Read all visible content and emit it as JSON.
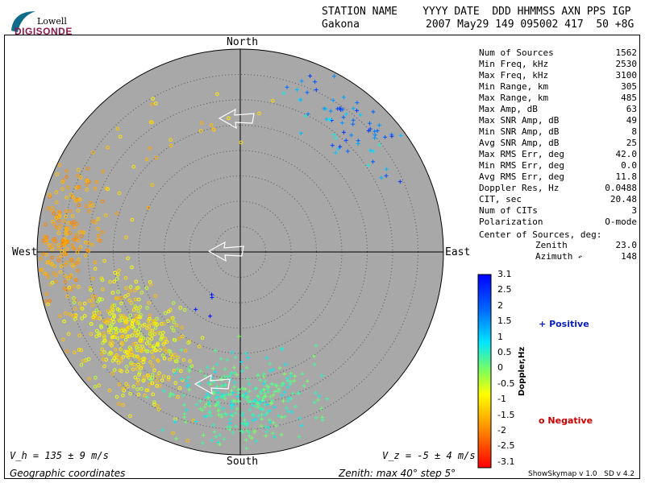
{
  "header": {
    "line1": "STATION NAME    YYYY DATE  DDD HHMMSS AXN PPS IGP",
    "station": "Gakona",
    "values": "2007 May29 149 095002 417  50 +8G"
  },
  "logo": {
    "top": "Lowell",
    "bottom": "DIGISONDE"
  },
  "compass": {
    "north": "North",
    "south": "South",
    "east": "East",
    "west": "West"
  },
  "stats": [
    {
      "label": "Num of Sources",
      "value": "1562"
    },
    {
      "label": "Min Freq, kHz",
      "value": "2530"
    },
    {
      "label": "Max Freq, kHz",
      "value": "3100"
    },
    {
      "label": "Min Range, km",
      "value": "305"
    },
    {
      "label": "Max Range, km",
      "value": "485"
    },
    {
      "label": "Max Amp, dB",
      "value": "63"
    },
    {
      "label": "Max SNR Amp, dB",
      "value": "49"
    },
    {
      "label": "Min SNR Amp, dB",
      "value": "8"
    },
    {
      "label": "Avg SNR Amp, dB",
      "value": "25"
    },
    {
      "label": "Max RMS Err, deg",
      "value": "42.0"
    },
    {
      "label": "Min RMS Err, deg",
      "value": "0.0"
    },
    {
      "label": "Avg RMS Err, deg",
      "value": "11.8"
    },
    {
      "label": "Doppler Res, Hz",
      "value": "0.0488"
    },
    {
      "label": "CIT, sec",
      "value": "20.48"
    },
    {
      "label": "Num of CITs",
      "value": "3"
    },
    {
      "label": "Polarization",
      "value": "O-mode"
    }
  ],
  "center": {
    "label": "Center of Sources, deg:",
    "zenith_label": "Zenith",
    "zenith_value": "23.0",
    "azimuth_label": "Azimuth",
    "azimuth_value": "148"
  },
  "footer": {
    "vh": "V_h = 135 ± 9 m/s",
    "vz": "V_z = -5 ± 4 m/s",
    "coords": "Geographic coordinates",
    "zenith_info": "Zenith: max 40°  step 5°",
    "version": "ShowSkymap v 1.0   SD v 4.2"
  },
  "colorbar": {
    "label": "Doppler,Hz",
    "ticks": [
      "3.1",
      "2.5",
      "2",
      "1.5",
      "1",
      "0.5",
      "0",
      "-0.5",
      "-1",
      "-1.5",
      "-2",
      "-2.5",
      "-3.1"
    ],
    "min": -3.1,
    "max": 3.1
  },
  "legend": {
    "positive": "Positive",
    "negative": "Negative",
    "positive_symbol": "+",
    "negative_symbol": "o"
  },
  "colors": {
    "positive": "#0a1fb8",
    "negative": "#cc0000",
    "plot_bg": "#a8a8a8",
    "logo": "#8b1a4a"
  },
  "chart_data": {
    "type": "scatter",
    "coordinate_system": "polar-skymap",
    "zenith_max_deg": 40,
    "zenith_step_deg": 5,
    "clusters": [
      {
        "name": "northeast",
        "symbol": "+",
        "count": 70,
        "az_center": 40,
        "az_spread": 12,
        "zen_center": 33,
        "zen_spread": 5,
        "doppler": [
          0.6,
          2.6
        ]
      },
      {
        "name": "west",
        "symbol": "o",
        "count": 200,
        "az_center": 275,
        "az_spread": 12,
        "zen_center": 35,
        "zen_spread": 5,
        "doppler": [
          -2.0,
          -1.3
        ]
      },
      {
        "name": "southwest",
        "symbol": "o",
        "count": 420,
        "az_center": 232,
        "az_spread": 14,
        "zen_center": 28,
        "zen_spread": 8,
        "doppler": [
          -1.5,
          -0.3
        ]
      },
      {
        "name": "south",
        "symbol": "+",
        "count": 320,
        "az_center": 178,
        "az_spread": 14,
        "zen_center": 30,
        "zen_spread": 7,
        "doppler": [
          0.0,
          0.9
        ]
      },
      {
        "name": "scatter-nw",
        "symbol": "o",
        "count": 40,
        "az_center": 315,
        "az_spread": 25,
        "zen_center": 28,
        "zen_spread": 8,
        "doppler": [
          -1.6,
          -0.8
        ]
      },
      {
        "name": "blue-inner",
        "symbol": "+",
        "count": 4,
        "az_center": 210,
        "az_spread": 6,
        "zen_center": 12,
        "zen_spread": 3,
        "doppler": [
          2.8,
          3.1
        ]
      }
    ],
    "arrows": [
      {
        "name": "arrow-outer",
        "zenith": 33,
        "direction_deg": 270
      },
      {
        "name": "arrow-center",
        "zenith": 1,
        "direction_deg": 270
      },
      {
        "name": "arrow-south",
        "zenith": 25,
        "direction_deg": 270
      }
    ]
  }
}
